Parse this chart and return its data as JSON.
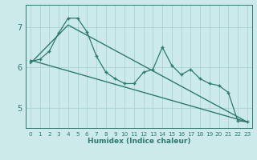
{
  "xlabel": "Humidex (Indice chaleur)",
  "bg_color": "#cceaea",
  "line_color": "#2d7a6e",
  "grid_color": "#aad4d4",
  "axis_color": "#2d7a6e",
  "text_color": "#2d7a6e",
  "xlim": [
    -0.5,
    23.5
  ],
  "ylim": [
    4.5,
    7.55
  ],
  "yticks": [
    5,
    6,
    7
  ],
  "xticks": [
    0,
    1,
    2,
    3,
    4,
    5,
    6,
    7,
    8,
    9,
    10,
    11,
    12,
    13,
    14,
    15,
    16,
    17,
    18,
    19,
    20,
    21,
    22,
    23
  ],
  "data_x": [
    0,
    1,
    2,
    3,
    4,
    5,
    6,
    7,
    8,
    9,
    10,
    11,
    12,
    13,
    14,
    15,
    16,
    17,
    18,
    19,
    20,
    21,
    22,
    23
  ],
  "data_y": [
    6.15,
    6.2,
    6.4,
    6.85,
    7.22,
    7.22,
    6.88,
    6.28,
    5.88,
    5.72,
    5.6,
    5.6,
    5.88,
    5.95,
    6.5,
    6.05,
    5.82,
    5.95,
    5.72,
    5.6,
    5.55,
    5.38,
    4.68,
    4.65
  ],
  "trend_x": [
    0,
    23
  ],
  "trend_y": [
    6.18,
    4.65
  ],
  "trend2_x": [
    0,
    4,
    23
  ],
  "trend2_y": [
    6.1,
    7.05,
    4.65
  ]
}
